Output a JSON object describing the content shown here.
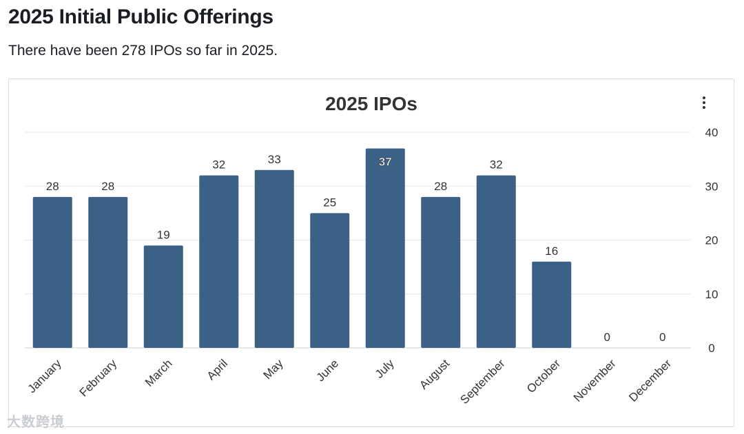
{
  "page": {
    "title": "2025 Initial Public Offerings",
    "summary": "There have been 278 IPOs so far in 2025."
  },
  "menu_icon": "more-vertical-icon",
  "watermark": "大数跨境",
  "colors": {
    "bar": "#3b6186",
    "bar_label_inside": "#ffffff"
  },
  "chart_data": {
    "type": "bar",
    "title": "2025 IPOs",
    "categories": [
      "January",
      "February",
      "March",
      "April",
      "May",
      "June",
      "July",
      "August",
      "September",
      "October",
      "November",
      "December"
    ],
    "values": [
      28,
      28,
      19,
      32,
      33,
      25,
      37,
      28,
      32,
      16,
      0,
      0
    ],
    "ylim": [
      0,
      40
    ],
    "yticks": [
      0,
      10,
      20,
      30,
      40
    ],
    "y_axis_side": "right",
    "grid": true,
    "xlabel": "",
    "ylabel": ""
  }
}
